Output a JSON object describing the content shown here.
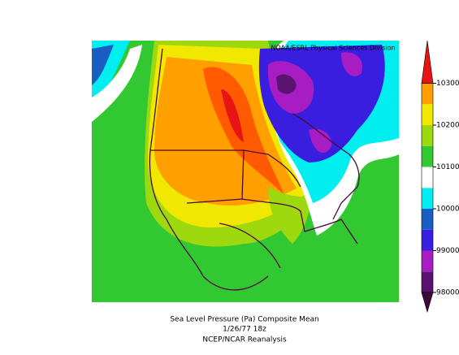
{
  "header": {
    "credit": "NOAA/ESRL Physical Sciences Division"
  },
  "footer": {
    "title": "Sea Level Pressure (Pa)   Composite Mean",
    "date": "1/26/77 18z",
    "source": "NCEP/NCAR Reanalysis"
  },
  "colorbar": {
    "levels": [
      98000,
      98500,
      99000,
      99500,
      100000,
      100500,
      101000,
      101500,
      102000,
      102500,
      103000
    ],
    "colors": [
      "#5a1470",
      "#a81cc4",
      "#3a1ee0",
      "#1a5ec4",
      "#00eef0",
      "#ffffff",
      "#32c832",
      "#9ed80e",
      "#f0e800",
      "#ffa000"
    ],
    "under": "#3c0a3c",
    "over": "#e61414",
    "ticks": [
      98000,
      99000,
      100000,
      101000,
      102000,
      103000
    ]
  }
}
